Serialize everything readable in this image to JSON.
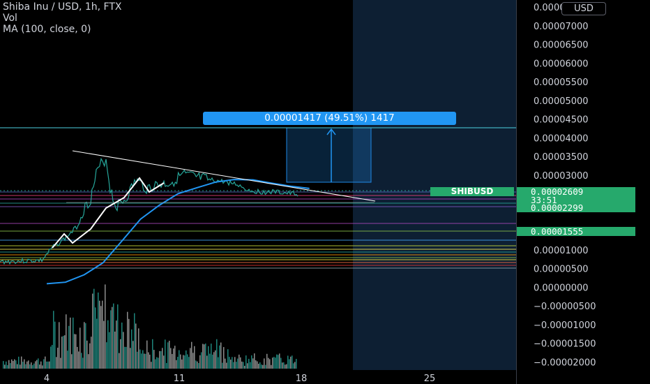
{
  "header": {
    "title": "Shiba Inu / USD, 1h, FTX",
    "volume_label": "Vol",
    "ma_label": "MA (100, close, 0)"
  },
  "toolbar": {
    "currency_button": "USD"
  },
  "ruler": {
    "label": "0.00001417 (49.51%) 1417"
  },
  "symbol_label": "SHIBUSD",
  "price_axis": {
    "ticks": [
      "0.00007500",
      "0.00007000",
      "0.00006500",
      "0.00006000",
      "0.00005500",
      "0.00005000",
      "0.00004500",
      "0.00004000",
      "0.00003500",
      "0.00003000",
      "0.00002500",
      "0.00002000",
      "0.00001500",
      "0.00001000",
      "0.00000500",
      "0.00000000",
      "−0.00000500",
      "−0.00001000",
      "−0.00001500",
      "−0.00002000"
    ],
    "last_price": "0.00002609",
    "countdown": "33:51",
    "secondary_price": "0.00002299",
    "alert_price": "0.00001555"
  },
  "time_axis": {
    "ticks": [
      "4",
      "11",
      "18",
      "25"
    ]
  },
  "chart_data": {
    "type": "line",
    "title": "Shiba Inu / USD, 1h, FTX",
    "ylim": [
      -2e-05,
      7.5e-05
    ],
    "x_ticks": [
      "4",
      "11",
      "18",
      "25"
    ],
    "grid": false,
    "series": [
      {
        "name": "MA (100, close, 0)",
        "x": [
          4,
          5,
          6,
          7,
          8,
          9,
          10,
          11,
          12,
          13,
          14,
          15,
          16,
          17,
          18
        ],
        "y": [
          1.1e-06,
          1.5e-06,
          3.5e-06,
          6.7e-06,
          1.25e-05,
          1.84e-05,
          2.21e-05,
          2.52e-05,
          2.68e-05,
          2.83e-05,
          2.9e-05,
          2.89e-05,
          2.8e-05,
          2.72e-05,
          2.66e-05
        ]
      }
    ],
    "price_levels": [
      2.6e-05,
      2.3e-05,
      1.55e-05
    ],
    "colors": {
      "up": "#26a69a",
      "ma": "#2196f3",
      "trendline": "#ffffff",
      "forecast_zone": "#0d1f33"
    }
  }
}
